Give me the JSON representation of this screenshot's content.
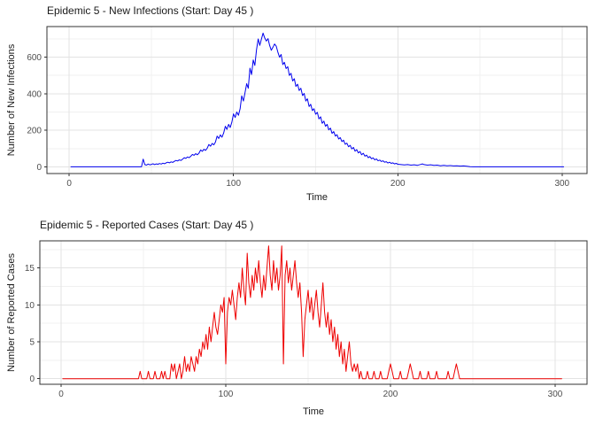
{
  "page": {
    "background": "#ffffff",
    "grid_major_color": "#e3e3e3",
    "grid_minor_color": "#f0f0f0",
    "panel_border_color": "#333333",
    "tick_color": "#333333",
    "tick_label_color": "#4d4d4d"
  },
  "chart_data": [
    {
      "type": "line",
      "title": "Epidemic 5 - New Infections (Start: Day 45 )",
      "xlabel": "Time",
      "ylabel": "Number of New Infections",
      "series_name": "new_infections",
      "line_color": "#0000EE",
      "x_ticks": [
        0,
        100,
        200,
        300
      ],
      "x_minor_ticks": [
        50,
        150,
        250
      ],
      "y_ticks": [
        0,
        200,
        400,
        600
      ],
      "y_minor_ticks": [
        100,
        300,
        500,
        700
      ],
      "xlim": [
        -14,
        315
      ],
      "ylim": [
        -37,
        768
      ],
      "grid": true,
      "legend": "none",
      "points": [
        [
          1,
          0
        ],
        [
          44,
          0
        ],
        [
          45,
          42
        ],
        [
          46,
          12
        ],
        [
          47,
          9
        ],
        [
          48,
          15
        ],
        [
          49,
          11
        ],
        [
          50,
          13
        ],
        [
          51,
          17
        ],
        [
          52,
          12
        ],
        [
          53,
          16
        ],
        [
          54,
          14
        ],
        [
          55,
          18
        ],
        [
          56,
          15
        ],
        [
          57,
          20
        ],
        [
          58,
          17
        ],
        [
          59,
          22
        ],
        [
          60,
          25
        ],
        [
          61,
          22
        ],
        [
          62,
          27
        ],
        [
          63,
          24
        ],
        [
          64,
          30
        ],
        [
          65,
          35
        ],
        [
          66,
          32
        ],
        [
          67,
          38
        ],
        [
          68,
          35
        ],
        [
          69,
          42
        ],
        [
          70,
          50
        ],
        [
          71,
          46
        ],
        [
          72,
          54
        ],
        [
          73,
          50
        ],
        [
          74,
          58
        ],
        [
          75,
          68
        ],
        [
          76,
          63
        ],
        [
          77,
          72
        ],
        [
          78,
          66
        ],
        [
          79,
          75
        ],
        [
          80,
          92
        ],
        [
          81,
          85
        ],
        [
          82,
          96
        ],
        [
          83,
          90
        ],
        [
          84,
          102
        ],
        [
          85,
          122
        ],
        [
          86,
          113
        ],
        [
          87,
          128
        ],
        [
          88,
          120
        ],
        [
          89,
          135
        ],
        [
          90,
          168
        ],
        [
          91,
          155
        ],
        [
          92,
          175
        ],
        [
          93,
          162
        ],
        [
          94,
          185
        ],
        [
          95,
          222
        ],
        [
          96,
          205
        ],
        [
          97,
          232
        ],
        [
          98,
          215
        ],
        [
          99,
          245
        ],
        [
          100,
          290
        ],
        [
          101,
          270
        ],
        [
          102,
          300
        ],
        [
          103,
          282
        ],
        [
          104,
          318
        ],
        [
          105,
          388
        ],
        [
          106,
          360
        ],
        [
          107,
          405
        ],
        [
          108,
          455
        ],
        [
          109,
          430
        ],
        [
          110,
          540
        ],
        [
          111,
          505
        ],
        [
          112,
          585
        ],
        [
          113,
          555
        ],
        [
          114,
          640
        ],
        [
          115,
          700
        ],
        [
          116,
          665
        ],
        [
          117,
          700
        ],
        [
          118,
          732
        ],
        [
          119,
          705
        ],
        [
          120,
          688
        ],
        [
          121,
          702
        ],
        [
          122,
          665
        ],
        [
          123,
          638
        ],
        [
          124,
          655
        ],
        [
          125,
          672
        ],
        [
          126,
          660
        ],
        [
          127,
          628
        ],
        [
          128,
          600
        ],
        [
          129,
          615
        ],
        [
          130,
          560
        ],
        [
          131,
          572
        ],
        [
          132,
          538
        ],
        [
          133,
          548
        ],
        [
          134,
          500
        ],
        [
          135,
          512
        ],
        [
          136,
          470
        ],
        [
          137,
          482
        ],
        [
          138,
          440
        ],
        [
          139,
          452
        ],
        [
          140,
          418
        ],
        [
          141,
          430
        ],
        [
          142,
          390
        ],
        [
          143,
          402
        ],
        [
          144,
          360
        ],
        [
          145,
          372
        ],
        [
          146,
          330
        ],
        [
          147,
          342
        ],
        [
          148,
          308
        ],
        [
          149,
          318
        ],
        [
          150,
          288
        ],
        [
          151,
          298
        ],
        [
          152,
          262
        ],
        [
          153,
          274
        ],
        [
          154,
          238
        ],
        [
          155,
          250
        ],
        [
          156,
          222
        ],
        [
          157,
          232
        ],
        [
          158,
          202
        ],
        [
          159,
          212
        ],
        [
          160,
          183
        ],
        [
          161,
          193
        ],
        [
          162,
          168
        ],
        [
          163,
          176
        ],
        [
          164,
          152
        ],
        [
          165,
          160
        ],
        [
          166,
          138
        ],
        [
          167,
          146
        ],
        [
          168,
          123
        ],
        [
          169,
          130
        ],
        [
          170,
          110
        ],
        [
          171,
          118
        ],
        [
          172,
          98
        ],
        [
          173,
          106
        ],
        [
          174,
          86
        ],
        [
          175,
          94
        ],
        [
          176,
          76
        ],
        [
          177,
          84
        ],
        [
          178,
          66
        ],
        [
          179,
          74
        ],
        [
          180,
          58
        ],
        [
          181,
          64
        ],
        [
          182,
          50
        ],
        [
          183,
          56
        ],
        [
          184,
          44
        ],
        [
          185,
          49
        ],
        [
          186,
          38
        ],
        [
          187,
          43
        ],
        [
          188,
          33
        ],
        [
          189,
          37
        ],
        [
          190,
          29
        ],
        [
          191,
          33
        ],
        [
          192,
          25
        ],
        [
          193,
          28
        ],
        [
          194,
          21
        ],
        [
          195,
          25
        ],
        [
          196,
          19
        ],
        [
          197,
          22
        ],
        [
          198,
          16
        ],
        [
          199,
          19
        ],
        [
          200,
          14
        ],
        [
          202,
          12
        ],
        [
          204,
          10
        ],
        [
          206,
          12
        ],
        [
          208,
          9
        ],
        [
          210,
          11
        ],
        [
          212,
          8
        ],
        [
          214,
          13
        ],
        [
          215,
          16
        ],
        [
          216,
          12
        ],
        [
          218,
          9
        ],
        [
          220,
          11
        ],
        [
          222,
          8
        ],
        [
          224,
          9
        ],
        [
          226,
          6
        ],
        [
          228,
          8
        ],
        [
          230,
          6
        ],
        [
          232,
          7
        ],
        [
          234,
          5
        ],
        [
          236,
          6
        ],
        [
          238,
          4
        ],
        [
          240,
          5
        ],
        [
          242,
          3
        ],
        [
          244,
          1
        ],
        [
          246,
          0
        ],
        [
          301,
          0
        ]
      ]
    },
    {
      "type": "line",
      "title": "Epidemic 5 - Reported Cases (Start: Day 45 )",
      "xlabel": "Time",
      "ylabel": "Number of Reported Cases",
      "series_name": "reported_cases",
      "line_color": "#EE0000",
      "x_ticks": [
        0,
        100,
        200,
        300
      ],
      "x_minor_ticks": [
        50,
        150,
        250
      ],
      "y_ticks": [
        0,
        5,
        10,
        15
      ],
      "y_minor_ticks": [
        2.5,
        7.5,
        12.5,
        17.5
      ],
      "xlim": [
        -13,
        319
      ],
      "ylim": [
        -0.8,
        18.7
      ],
      "grid": true,
      "legend": "none",
      "points": [
        [
          1,
          0
        ],
        [
          47,
          0
        ],
        [
          48,
          1
        ],
        [
          49,
          0
        ],
        [
          52,
          0
        ],
        [
          53,
          1
        ],
        [
          54,
          0
        ],
        [
          56,
          0
        ],
        [
          57,
          1
        ],
        [
          58,
          0
        ],
        [
          60,
          0
        ],
        [
          61,
          1
        ],
        [
          62,
          0
        ],
        [
          63,
          1
        ],
        [
          64,
          0
        ],
        [
          66,
          0
        ],
        [
          67,
          2
        ],
        [
          68,
          1
        ],
        [
          69,
          2
        ],
        [
          70,
          0
        ],
        [
          71,
          1
        ],
        [
          72,
          2
        ],
        [
          73,
          0
        ],
        [
          74,
          1
        ],
        [
          75,
          3
        ],
        [
          76,
          1
        ],
        [
          77,
          2
        ],
        [
          78,
          1
        ],
        [
          79,
          3
        ],
        [
          80,
          2
        ],
        [
          81,
          1
        ],
        [
          82,
          3
        ],
        [
          83,
          2
        ],
        [
          84,
          4
        ],
        [
          85,
          3
        ],
        [
          86,
          5
        ],
        [
          87,
          4
        ],
        [
          88,
          6
        ],
        [
          89,
          4
        ],
        [
          90,
          7
        ],
        [
          91,
          5
        ],
        [
          92,
          7
        ],
        [
          93,
          9
        ],
        [
          94,
          7
        ],
        [
          95,
          6
        ],
        [
          96,
          8
        ],
        [
          97,
          10
        ],
        [
          98,
          9
        ],
        [
          99,
          11
        ],
        [
          100,
          2
        ],
        [
          101,
          9
        ],
        [
          102,
          11
        ],
        [
          103,
          10
        ],
        [
          104,
          12
        ],
        [
          105,
          10
        ],
        [
          106,
          8
        ],
        [
          107,
          11
        ],
        [
          108,
          13
        ],
        [
          109,
          11
        ],
        [
          110,
          15
        ],
        [
          111,
          12
        ],
        [
          112,
          10
        ],
        [
          113,
          17
        ],
        [
          114,
          13
        ],
        [
          115,
          11
        ],
        [
          116,
          14
        ],
        [
          117,
          12
        ],
        [
          118,
          15
        ],
        [
          119,
          13
        ],
        [
          120,
          16
        ],
        [
          121,
          13
        ],
        [
          122,
          11
        ],
        [
          123,
          14
        ],
        [
          124,
          12
        ],
        [
          125,
          15
        ],
        [
          126,
          18
        ],
        [
          127,
          14
        ],
        [
          128,
          12
        ],
        [
          129,
          16
        ],
        [
          130,
          13
        ],
        [
          131,
          15
        ],
        [
          132,
          12
        ],
        [
          133,
          14
        ],
        [
          134,
          18
        ],
        [
          135,
          2
        ],
        [
          136,
          14
        ],
        [
          137,
          16
        ],
        [
          138,
          13
        ],
        [
          139,
          15
        ],
        [
          140,
          12
        ],
        [
          141,
          14
        ],
        [
          142,
          16
        ],
        [
          143,
          13
        ],
        [
          144,
          11
        ],
        [
          145,
          13
        ],
        [
          146,
          9
        ],
        [
          147,
          3
        ],
        [
          148,
          8
        ],
        [
          149,
          10
        ],
        [
          150,
          12
        ],
        [
          151,
          9
        ],
        [
          152,
          11
        ],
        [
          153,
          8
        ],
        [
          154,
          10
        ],
        [
          155,
          12
        ],
        [
          156,
          9
        ],
        [
          157,
          7
        ],
        [
          158,
          10
        ],
        [
          159,
          13
        ],
        [
          160,
          9
        ],
        [
          161,
          7
        ],
        [
          162,
          9
        ],
        [
          163,
          6
        ],
        [
          164,
          8
        ],
        [
          165,
          5
        ],
        [
          166,
          7
        ],
        [
          167,
          4
        ],
        [
          168,
          6
        ],
        [
          169,
          3
        ],
        [
          170,
          5
        ],
        [
          171,
          2
        ],
        [
          172,
          4
        ],
        [
          173,
          1
        ],
        [
          174,
          3
        ],
        [
          175,
          5
        ],
        [
          176,
          2
        ],
        [
          177,
          1
        ],
        [
          178,
          2
        ],
        [
          179,
          1
        ],
        [
          180,
          2
        ],
        [
          181,
          0
        ],
        [
          182,
          1
        ],
        [
          183,
          0
        ],
        [
          185,
          0
        ],
        [
          186,
          1
        ],
        [
          187,
          0
        ],
        [
          189,
          0
        ],
        [
          190,
          1
        ],
        [
          191,
          0
        ],
        [
          193,
          0
        ],
        [
          194,
          1
        ],
        [
          195,
          0
        ],
        [
          198,
          0
        ],
        [
          199,
          1
        ],
        [
          200,
          2
        ],
        [
          201,
          1
        ],
        [
          202,
          0
        ],
        [
          205,
          0
        ],
        [
          206,
          1
        ],
        [
          207,
          0
        ],
        [
          210,
          0
        ],
        [
          211,
          1
        ],
        [
          212,
          2
        ],
        [
          213,
          1
        ],
        [
          214,
          0
        ],
        [
          217,
          0
        ],
        [
          218,
          1
        ],
        [
          219,
          0
        ],
        [
          222,
          0
        ],
        [
          223,
          1
        ],
        [
          224,
          0
        ],
        [
          227,
          0
        ],
        [
          228,
          1
        ],
        [
          229,
          0
        ],
        [
          234,
          0
        ],
        [
          235,
          1
        ],
        [
          236,
          0
        ],
        [
          238,
          0
        ],
        [
          239,
          1
        ],
        [
          240,
          2
        ],
        [
          241,
          1
        ],
        [
          242,
          0
        ],
        [
          304,
          0
        ]
      ]
    }
  ]
}
